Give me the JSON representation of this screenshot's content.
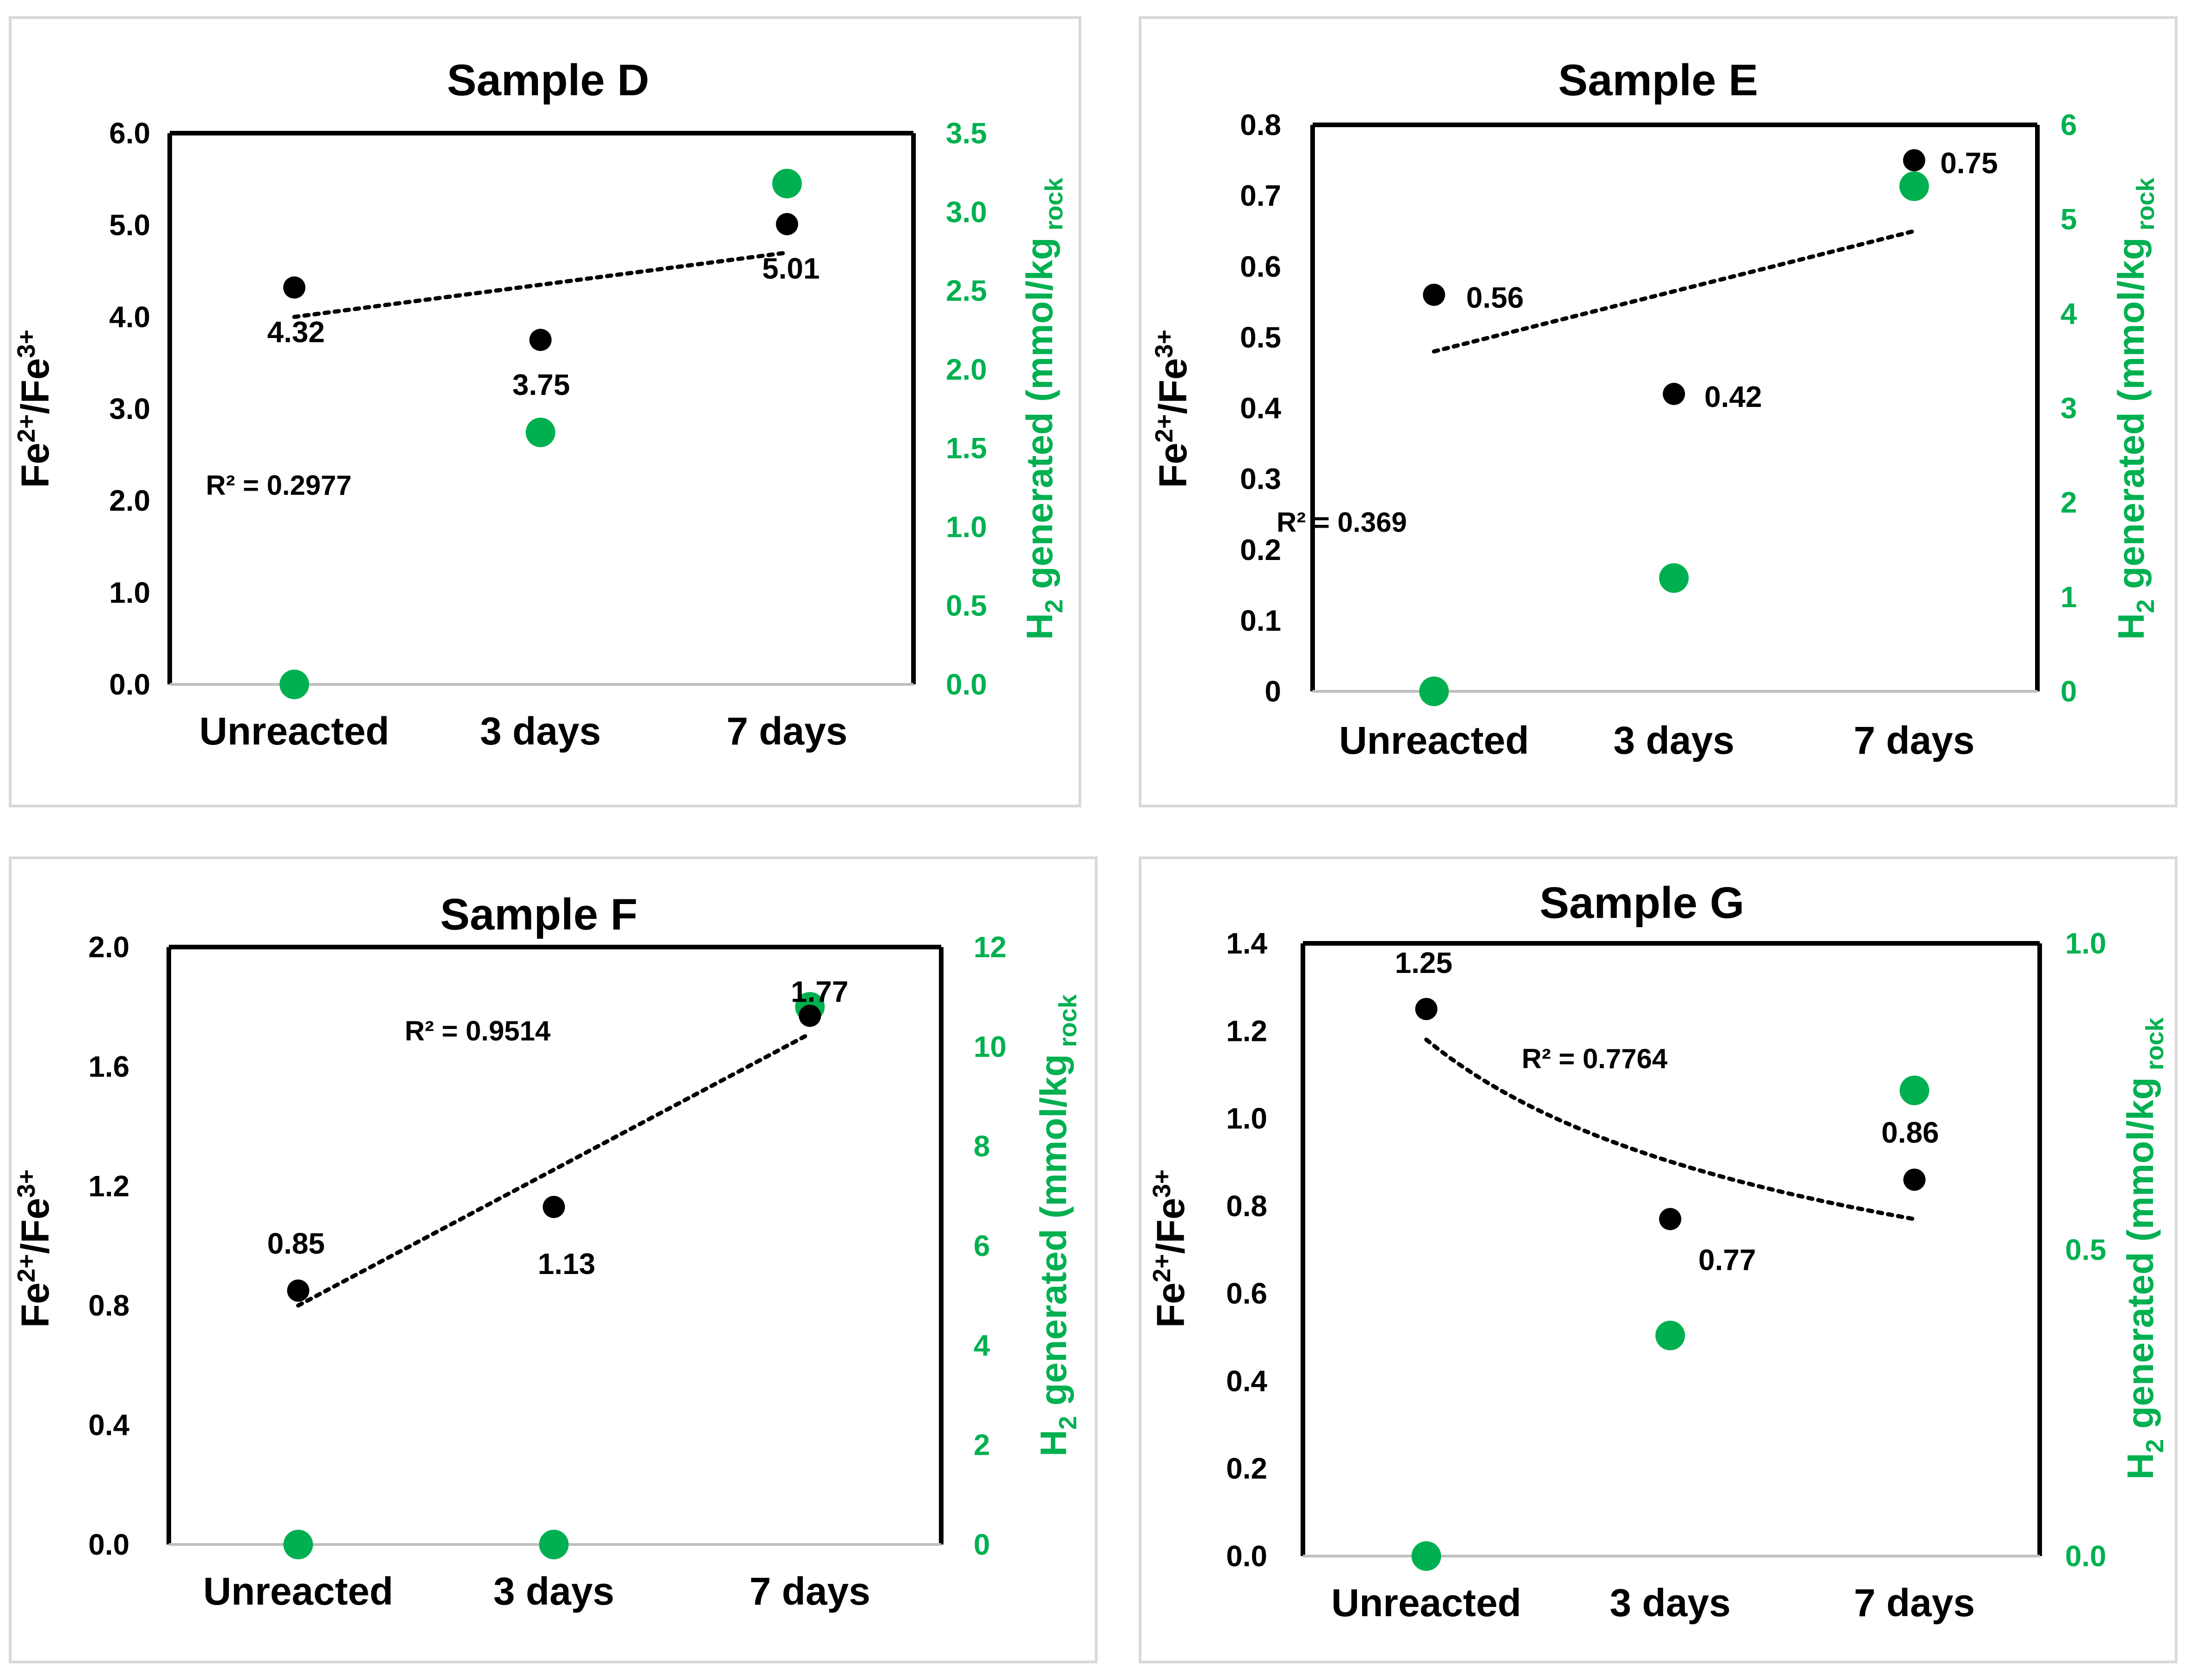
{
  "colors": {
    "fe_series": "#000000",
    "h2_series": "#00b050",
    "panel_border": "#d9d9d9",
    "trend": "#000000"
  },
  "chart_data": [
    {
      "type": "scatter",
      "title": "Sample D",
      "categories": [
        "Unreacted",
        "3 days",
        "7 days"
      ],
      "ylabel_left": {
        "base": "Fe",
        "sup1": "2+",
        "mid": "/Fe",
        "sup2": "3+"
      },
      "ylabel_right": {
        "base": "H",
        "sub": "2",
        "mid": " generated (mmol/kg",
        "sub2": " rock"
      },
      "y_left": {
        "lim": [
          0,
          6
        ],
        "ticks": [
          0,
          1,
          2,
          3,
          4,
          5,
          6
        ],
        "tick_labels": [
          "0.0",
          "1.0",
          "2.0",
          "3.0",
          "4.0",
          "5.0",
          "6.0"
        ]
      },
      "y_right": {
        "lim": [
          0,
          3.5
        ],
        "ticks": [
          0,
          0.5,
          1,
          1.5,
          2,
          2.5,
          3,
          3.5
        ],
        "tick_labels": [
          "0.0",
          "0.5",
          "1.0",
          "1.5",
          "2.0",
          "2.5",
          "3.0",
          "3.5"
        ]
      },
      "series": [
        {
          "name": "Fe2+/Fe3+",
          "axis": "left",
          "values": [
            4.32,
            3.75,
            5.01
          ],
          "labels": [
            "4.32",
            "3.75",
            "5.01"
          ]
        },
        {
          "name": "H2 generated",
          "axis": "right",
          "values": [
            0,
            1.6,
            3.18
          ]
        }
      ],
      "trendline": {
        "type": "linear",
        "start": 4.0,
        "end": 4.7,
        "r2_label": "R² = 0.2977"
      }
    },
    {
      "type": "scatter",
      "title": "Sample E",
      "categories": [
        "Unreacted",
        "3 days",
        "7 days"
      ],
      "ylabel_left": {
        "base": "Fe",
        "sup1": "2+",
        "mid": "/Fe",
        "sup2": "3+"
      },
      "ylabel_right": {
        "base": "H",
        "sub": "2",
        "mid": " generated (mmol/kg",
        "sub2": " rock"
      },
      "y_left": {
        "lim": [
          0,
          0.8
        ],
        "ticks": [
          0,
          0.1,
          0.2,
          0.3,
          0.4,
          0.5,
          0.6,
          0.7,
          0.8
        ],
        "tick_labels": [
          "0",
          "0.1",
          "0.2",
          "0.3",
          "0.4",
          "0.5",
          "0.6",
          "0.7",
          "0.8"
        ]
      },
      "y_right": {
        "lim": [
          0,
          6
        ],
        "ticks": [
          0,
          1,
          2,
          3,
          4,
          5,
          6
        ],
        "tick_labels": [
          "0",
          "1",
          "2",
          "3",
          "4",
          "5",
          "6"
        ]
      },
      "series": [
        {
          "name": "Fe2+/Fe3+",
          "axis": "left",
          "values": [
            0.56,
            0.42,
            0.75
          ],
          "labels": [
            "0.56",
            "0.42",
            "0.75"
          ]
        },
        {
          "name": "H2 generated",
          "axis": "right",
          "values": [
            0,
            1.2,
            5.35
          ]
        }
      ],
      "trendline": {
        "type": "linear",
        "start": 0.48,
        "end": 0.65,
        "r2_label": "R² = 0.369"
      }
    },
    {
      "type": "scatter",
      "title": "Sample F",
      "categories": [
        "Unreacted",
        "3 days",
        "7 days"
      ],
      "ylabel_left": {
        "base": "Fe",
        "sup1": "2+",
        "mid": "/Fe",
        "sup2": "3+"
      },
      "ylabel_right": {
        "base": "H",
        "sub": "2",
        "mid": " generated (mmol/kg",
        "sub2": " rock"
      },
      "y_left": {
        "lim": [
          0,
          2
        ],
        "ticks": [
          0,
          0.4,
          0.8,
          1.2,
          1.6,
          2.0
        ],
        "tick_labels": [
          "0.0",
          "0.4",
          "0.8",
          "1.2",
          "1.6",
          "2.0"
        ]
      },
      "y_right": {
        "lim": [
          0,
          12
        ],
        "ticks": [
          0,
          2,
          4,
          6,
          8,
          10,
          12
        ],
        "tick_labels": [
          "0",
          "2",
          "4",
          "6",
          "8",
          "10",
          "12"
        ]
      },
      "series": [
        {
          "name": "Fe2+/Fe3+",
          "axis": "left",
          "values": [
            0.85,
            1.13,
            1.77
          ],
          "labels": [
            "0.85",
            "1.13",
            "1.77"
          ]
        },
        {
          "name": "H2 generated",
          "axis": "right",
          "values": [
            0,
            0,
            10.8
          ]
        }
      ],
      "trendline": {
        "type": "linear",
        "start": 0.8,
        "end": 1.71,
        "r2_label": "R² = 0.9514"
      }
    },
    {
      "type": "scatter",
      "title": "Sample G",
      "categories": [
        "Unreacted",
        "3 days",
        "7 days"
      ],
      "ylabel_left": {
        "base": "Fe",
        "sup1": "2+",
        "mid": "/Fe",
        "sup2": "3+"
      },
      "ylabel_right": {
        "base": "H",
        "sub": "2",
        "mid": " generated (mmol/kg",
        "sub2": " rock"
      },
      "y_left": {
        "lim": [
          0,
          1.4
        ],
        "ticks": [
          0,
          0.2,
          0.4,
          0.6,
          0.8,
          1.0,
          1.2,
          1.4
        ],
        "tick_labels": [
          "0.0",
          "0.2",
          "0.4",
          "0.6",
          "0.8",
          "1.0",
          "1.2",
          "1.4"
        ]
      },
      "y_right": {
        "lim": [
          0,
          1.0
        ],
        "ticks": [
          0,
          0.5,
          1.0
        ],
        "tick_labels": [
          "0.0",
          "0.5",
          "1.0"
        ]
      },
      "series": [
        {
          "name": "Fe2+/Fe3+",
          "axis": "left",
          "values": [
            1.25,
            0.77,
            0.86
          ],
          "labels": [
            "1.25",
            "0.77",
            "0.86"
          ]
        },
        {
          "name": "H2 generated",
          "axis": "right",
          "values": [
            0,
            0.36,
            0.76
          ]
        }
      ],
      "trendline": {
        "type": "power",
        "start": 1.18,
        "end": 0.77,
        "r2_label": "R² = 0.7764"
      }
    }
  ]
}
